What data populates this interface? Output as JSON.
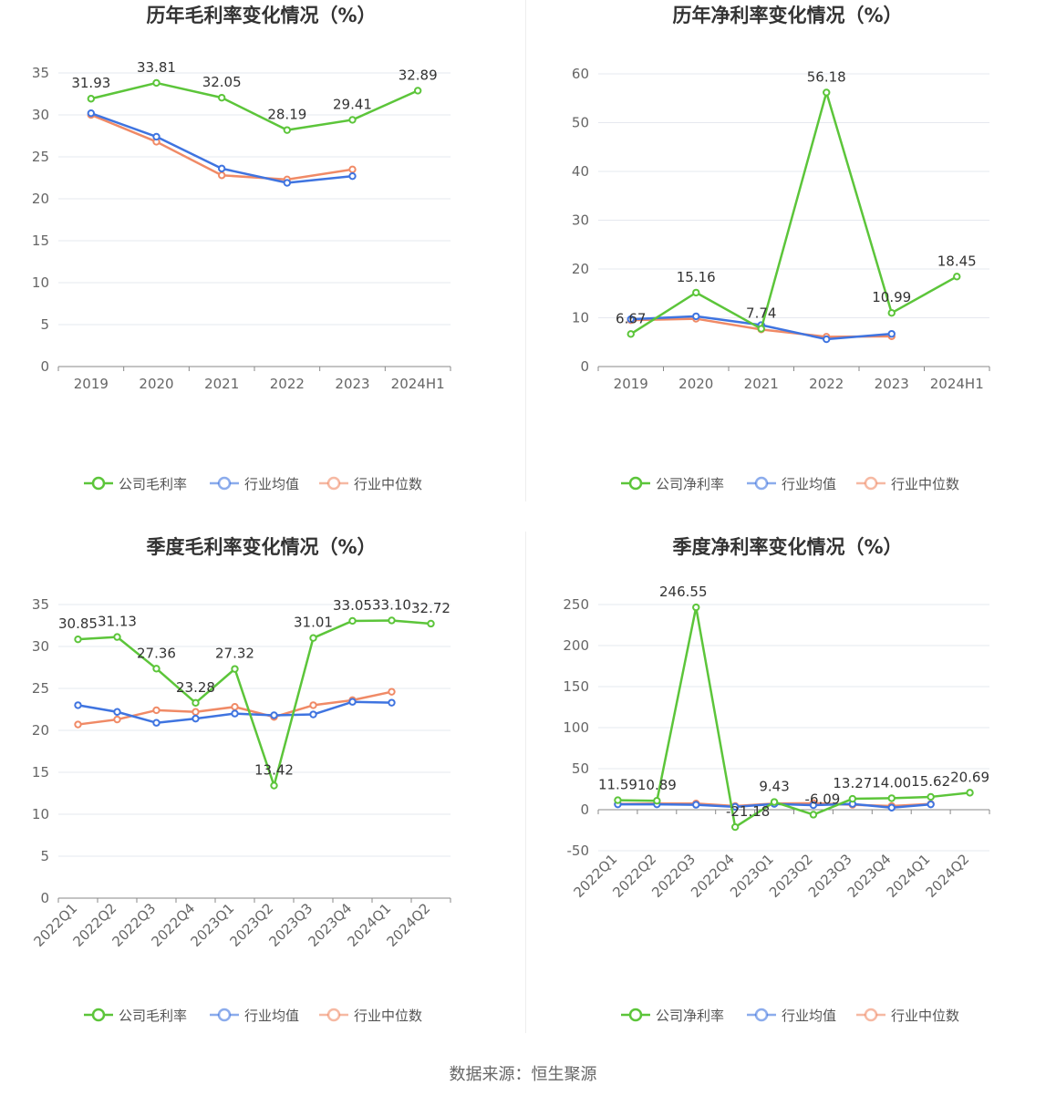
{
  "source": "数据来源：恒生聚源",
  "colors": {
    "company": "#5cc53a",
    "industry_avg": "#3f74e0",
    "industry_median": "#f08a66"
  },
  "chart_data": [
    {
      "type": "line",
      "title": "历年毛利率变化情况（%）",
      "categories": [
        "2019",
        "2020",
        "2021",
        "2022",
        "2023",
        "2024H1"
      ],
      "ylim": [
        0,
        35
      ],
      "yticks": [
        0,
        5,
        10,
        15,
        20,
        25,
        30,
        35
      ],
      "series": [
        {
          "name": "公司毛利率",
          "values": [
            31.93,
            33.81,
            32.05,
            28.19,
            29.41,
            32.89
          ],
          "labels": [
            "31.93",
            "33.81",
            "32.05",
            "28.19",
            "29.41",
            "32.89"
          ]
        },
        {
          "name": "行业均值",
          "values": [
            30.2,
            27.4,
            23.6,
            21.9,
            22.7,
            null
          ]
        },
        {
          "name": "行业中位数",
          "values": [
            30.0,
            26.8,
            22.8,
            22.3,
            23.5,
            null
          ]
        }
      ],
      "legend": "bottom-center",
      "grid": true
    },
    {
      "type": "line",
      "title": "历年净利率变化情况（%）",
      "categories": [
        "2019",
        "2020",
        "2021",
        "2022",
        "2023",
        "2024H1"
      ],
      "ylim": [
        0,
        60
      ],
      "yticks": [
        0,
        10,
        20,
        30,
        40,
        50,
        60
      ],
      "series": [
        {
          "name": "公司净利率",
          "values": [
            6.67,
            15.16,
            7.74,
            56.18,
            10.99,
            18.45
          ],
          "labels": [
            "6.67",
            "15.16",
            "7.74",
            "56.18",
            "10.99",
            "18.45"
          ]
        },
        {
          "name": "行业均值",
          "values": [
            9.7,
            10.3,
            8.5,
            5.6,
            6.7,
            null
          ]
        },
        {
          "name": "行业中位数",
          "values": [
            9.5,
            9.8,
            7.6,
            6.1,
            6.2,
            null
          ]
        }
      ],
      "legend": "bottom-center",
      "grid": true
    },
    {
      "type": "line",
      "title": "季度毛利率变化情况（%）",
      "categories": [
        "2022Q1",
        "2022Q2",
        "2022Q3",
        "2022Q4",
        "2023Q1",
        "2023Q2",
        "2023Q3",
        "2023Q4",
        "2024Q1",
        "2024Q2"
      ],
      "ylim": [
        0,
        35
      ],
      "yticks": [
        0,
        5,
        10,
        15,
        20,
        25,
        30,
        35
      ],
      "series": [
        {
          "name": "公司毛利率",
          "values": [
            30.85,
            31.13,
            27.36,
            23.28,
            27.32,
            13.42,
            31.01,
            33.05,
            33.1,
            32.72
          ],
          "labels": [
            "30.85",
            "31.13",
            "27.36",
            "23.28",
            "27.32",
            "13.42",
            "31.01",
            "33.05",
            "33.10",
            "32.72"
          ]
        },
        {
          "name": "行业均值",
          "values": [
            23.0,
            22.2,
            20.9,
            21.4,
            22.0,
            21.8,
            21.9,
            23.4,
            23.3,
            null
          ]
        },
        {
          "name": "行业中位数",
          "values": [
            20.7,
            21.3,
            22.4,
            22.2,
            22.8,
            21.6,
            23.0,
            23.6,
            24.6,
            null
          ]
        }
      ],
      "legend": "bottom-center",
      "grid": true
    },
    {
      "type": "line",
      "title": "季度净利率变化情况（%）",
      "categories": [
        "2022Q1",
        "2022Q2",
        "2022Q3",
        "2022Q4",
        "2023Q1",
        "2023Q2",
        "2023Q3",
        "2023Q4",
        "2024Q1",
        "2024Q2"
      ],
      "ylim": [
        -50,
        250
      ],
      "yticks": [
        -50,
        0,
        50,
        100,
        150,
        200,
        250
      ],
      "series": [
        {
          "name": "公司净利率",
          "values": [
            11.59,
            10.89,
            246.55,
            -21.18,
            9.43,
            -6.09,
            13.27,
            14.0,
            15.62,
            20.69
          ],
          "labels": [
            "11.59",
            "10.89",
            "246.55",
            "-21.18",
            "9.43",
            "-6.09",
            "13.27",
            "14.00",
            "15.62",
            "20.69"
          ]
        },
        {
          "name": "行业均值",
          "values": [
            6.5,
            6.5,
            6.0,
            3.5,
            7.0,
            5.5,
            7.0,
            2.5,
            6.5,
            null
          ]
        },
        {
          "name": "行业中位数",
          "values": [
            7.0,
            7.5,
            7.5,
            4.5,
            7.5,
            8.0,
            6.0,
            4.5,
            7.0,
            null
          ]
        }
      ],
      "legend": "bottom-center",
      "grid": true
    }
  ]
}
